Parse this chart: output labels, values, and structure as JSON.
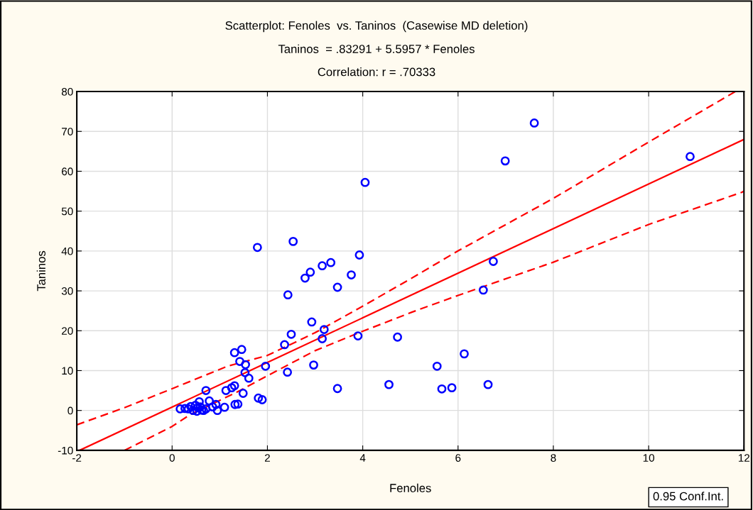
{
  "chart_data": {
    "type": "scatter",
    "title": "Scatterplot: Fenoles  vs. Taninos  (Casewise MD deletion)",
    "subtitle": "Taninos  = .83291 + 5.5957 * Fenoles",
    "annotations": [
      "Correlation: r = .70333",
      "0.95 Conf.Int."
    ],
    "xlabel": "Fenoles",
    "ylabel": "Taninos",
    "xlim": [
      -2,
      12
    ],
    "xticks": [
      -2,
      0,
      2,
      4,
      6,
      8,
      10,
      12
    ],
    "ylim": [
      -10,
      80
    ],
    "yticks": [
      -10,
      0,
      10,
      20,
      30,
      40,
      50,
      60,
      70,
      80
    ],
    "grid": true,
    "marker": "circle",
    "series": [
      {
        "color": "#0000ff",
        "x": [
          7.6,
          6.99,
          10.87,
          4.05,
          1.79,
          2.54,
          3.93,
          3.33,
          3.15,
          2.9,
          2.79,
          3.76,
          6.74,
          2.43,
          3.47,
          6.53,
          2.93,
          3.19,
          2.5,
          3.15,
          3.9,
          4.73,
          6.13,
          2.36,
          5.56,
          4.55,
          5.66,
          5.87,
          6.63,
          3.47,
          2.97,
          2.42,
          1.31,
          1.46,
          1.42,
          1.54,
          1.53,
          1.61,
          1.96,
          0.71,
          1.13,
          1.25,
          1.31,
          1.49,
          1.81,
          1.89,
          1.32,
          1.38,
          1.1,
          0.95,
          0.92,
          0.78,
          0.85,
          0.71,
          0.57,
          0.49,
          0.54,
          0.62,
          0.39,
          0.34,
          0.27,
          0.17,
          0.44,
          0.52,
          0.59,
          0.66
        ],
        "values": [
          72.1,
          62.6,
          63.7,
          57.2,
          40.9,
          42.4,
          39.0,
          37.1,
          36.3,
          34.7,
          33.2,
          34.0,
          37.4,
          29.0,
          30.9,
          30.2,
          22.2,
          20.3,
          19.1,
          18.0,
          18.7,
          18.4,
          14.2,
          16.5,
          11.1,
          6.5,
          5.4,
          5.7,
          6.5,
          5.5,
          11.4,
          9.6,
          14.5,
          15.3,
          12.3,
          11.5,
          9.5,
          8.1,
          11.1,
          5.0,
          5.0,
          5.7,
          6.2,
          4.3,
          3.1,
          2.7,
          1.5,
          1.6,
          0.8,
          0.0,
          1.5,
          2.4,
          0.9,
          0.4,
          2.2,
          1.3,
          0.7,
          0.1,
          1.0,
          0.4,
          0.5,
          0.4,
          0.0,
          -0.2,
          0.9,
          0.0
        ]
      },
      {
        "type": "line",
        "color": "#ff0000",
        "line_style": "solid",
        "marker": "none",
        "x": [
          -1.94,
          12
        ],
        "values": [
          -10,
          68
        ]
      },
      {
        "type": "line",
        "color": "#ff0000",
        "line_style": "dashed",
        "marker": "none",
        "x": [
          -2,
          -1,
          0.01,
          1.16,
          2.0,
          3.0,
          4.05,
          5.0,
          6.01,
          8.0,
          10.01,
          11.82
        ],
        "values": [
          -3.6,
          0.7,
          5.5,
          11.1,
          13.8,
          19.5,
          26.5,
          33.0,
          40.1,
          53.2,
          67.4,
          80.0
        ]
      },
      {
        "type": "line",
        "color": "#ff0000",
        "line_style": "dashed",
        "marker": "none",
        "x": [
          -1.0,
          0.0,
          0.37,
          1.36,
          1.95,
          3.0,
          3.9,
          5.04,
          6.01,
          8.0,
          10.01,
          11.95,
          12.0
        ],
        "values": [
          -10.0,
          -4.0,
          -1.1,
          4.6,
          8.4,
          15.0,
          19.4,
          24.7,
          28.9,
          37.2,
          46.7,
          54.7,
          55.0
        ]
      }
    ]
  }
}
